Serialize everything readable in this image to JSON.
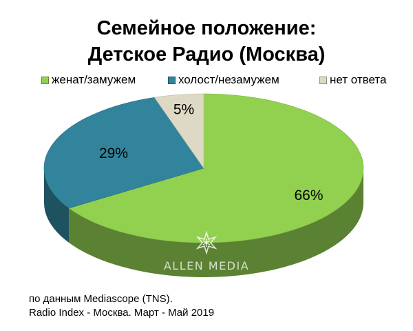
{
  "chart_data": {
    "type": "pie",
    "title": "Семейное положение: Детское Радио (Москва)",
    "title_lines": [
      "Семейное положение:",
      "Детское Радио (Москва)"
    ],
    "categories": [
      "женат/замужем",
      "холост/незамужем",
      "нет ответа"
    ],
    "values": [
      66,
      29,
      5
    ],
    "value_labels": [
      "66%",
      "29%",
      "5%"
    ],
    "colors": [
      "#92d050",
      "#31849b",
      "#ddd9c4"
    ],
    "legend_position": "top",
    "style": "3d"
  },
  "watermark": {
    "text": "ALLEN MEDIA",
    "icon": "star-burst-icon"
  },
  "footnote": {
    "line1": "по данным Mediascope (TNS).",
    "line2": "Radio Index - Москва. Март - Май 2019"
  }
}
